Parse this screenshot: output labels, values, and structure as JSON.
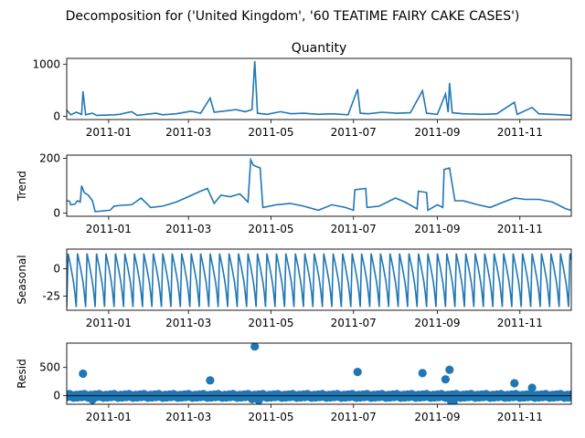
{
  "figure": {
    "title": "Decomposition for ('United Kingdom', '60 TEATIME FAIRY CAKE CASES')"
  },
  "colors": {
    "line": "#1f77b4",
    "axis": "#000000",
    "background": "#ffffff"
  },
  "x_ticks": [
    "2011-01",
    "2011-03",
    "2011-05",
    "2011-07",
    "2011-09",
    "2011-11"
  ],
  "chart_data": [
    {
      "type": "line",
      "panel": "observed",
      "title": "Quantity",
      "ylabel": "",
      "xlim": [
        "2010-12-01",
        "2011-12-09"
      ],
      "ylim": [
        -60,
        1110
      ],
      "yticks": [
        0,
        1000
      ],
      "x_ticks": [
        "2011-01",
        "2011-03",
        "2011-05",
        "2011-07",
        "2011-09",
        "2011-11"
      ],
      "series": [
        {
          "points": [
            [
              "2010-12-01",
              120
            ],
            [
              "2010-12-04",
              30
            ],
            [
              "2010-12-08",
              80
            ],
            [
              "2010-12-12",
              40
            ],
            [
              "2010-12-13",
              480
            ],
            [
              "2010-12-15",
              30
            ],
            [
              "2010-12-20",
              60
            ],
            [
              "2010-12-23",
              20
            ],
            [
              "2011-01-05",
              30
            ],
            [
              "2011-01-09",
              40
            ],
            [
              "2011-01-18",
              90
            ],
            [
              "2011-01-22",
              20
            ],
            [
              "2011-02-05",
              60
            ],
            [
              "2011-02-10",
              30
            ],
            [
              "2011-02-20",
              50
            ],
            [
              "2011-03-03",
              100
            ],
            [
              "2011-03-10",
              60
            ],
            [
              "2011-03-17",
              350
            ],
            [
              "2011-03-20",
              80
            ],
            [
              "2011-03-30",
              110
            ],
            [
              "2011-04-05",
              130
            ],
            [
              "2011-04-12",
              90
            ],
            [
              "2011-04-17",
              130
            ],
            [
              "2011-04-19",
              1060
            ],
            [
              "2011-04-21",
              60
            ],
            [
              "2011-04-28",
              40
            ],
            [
              "2011-05-08",
              90
            ],
            [
              "2011-05-16",
              50
            ],
            [
              "2011-05-25",
              60
            ],
            [
              "2011-06-05",
              40
            ],
            [
              "2011-06-15",
              50
            ],
            [
              "2011-06-27",
              30
            ],
            [
              "2011-07-04",
              520
            ],
            [
              "2011-07-06",
              60
            ],
            [
              "2011-07-12",
              50
            ],
            [
              "2011-07-22",
              80
            ],
            [
              "2011-08-02",
              60
            ],
            [
              "2011-08-12",
              70
            ],
            [
              "2011-08-21",
              490
            ],
            [
              "2011-08-24",
              60
            ],
            [
              "2011-09-01",
              40
            ],
            [
              "2011-09-07",
              430
            ],
            [
              "2011-09-09",
              80
            ],
            [
              "2011-09-10",
              640
            ],
            [
              "2011-09-12",
              70
            ],
            [
              "2011-09-20",
              50
            ],
            [
              "2011-10-05",
              40
            ],
            [
              "2011-10-15",
              50
            ],
            [
              "2011-10-28",
              270
            ],
            [
              "2011-10-30",
              40
            ],
            [
              "2011-11-10",
              170
            ],
            [
              "2011-11-15",
              50
            ],
            [
              "2011-11-25",
              40
            ],
            [
              "2011-12-09",
              20
            ]
          ]
        }
      ]
    },
    {
      "type": "line",
      "panel": "trend",
      "title": "",
      "ylabel": "Trend",
      "xlim": [
        "2010-12-01",
        "2011-12-09"
      ],
      "ylim": [
        -12,
        212
      ],
      "yticks": [
        0,
        200
      ],
      "x_ticks": [
        "2011-01",
        "2011-03",
        "2011-05",
        "2011-07",
        "2011-09",
        "2011-11"
      ],
      "series": [
        {
          "points": [
            [
              "2010-12-01",
              45
            ],
            [
              "2010-12-03",
              43
            ],
            [
              "2010-12-04",
              30
            ],
            [
              "2010-12-07",
              32
            ],
            [
              "2010-12-09",
              45
            ],
            [
              "2010-12-11",
              40
            ],
            [
              "2010-12-12",
              100
            ],
            [
              "2010-12-14",
              75
            ],
            [
              "2010-12-17",
              65
            ],
            [
              "2010-12-20",
              45
            ],
            [
              "2010-12-22",
              5
            ],
            [
              "2011-01-02",
              10
            ],
            [
              "2011-01-05",
              25
            ],
            [
              "2011-01-10",
              28
            ],
            [
              "2011-01-18",
              30
            ],
            [
              "2011-01-25",
              55
            ],
            [
              "2011-02-01",
              20
            ],
            [
              "2011-02-10",
              25
            ],
            [
              "2011-02-20",
              40
            ],
            [
              "2011-03-01",
              60
            ],
            [
              "2011-03-10",
              80
            ],
            [
              "2011-03-15",
              90
            ],
            [
              "2011-03-20",
              35
            ],
            [
              "2011-03-25",
              65
            ],
            [
              "2011-04-01",
              60
            ],
            [
              "2011-04-08",
              70
            ],
            [
              "2011-04-14",
              40
            ],
            [
              "2011-04-16",
              195
            ],
            [
              "2011-04-18",
              175
            ],
            [
              "2011-04-23",
              165
            ],
            [
              "2011-04-25",
              20
            ],
            [
              "2011-05-05",
              30
            ],
            [
              "2011-05-15",
              35
            ],
            [
              "2011-05-25",
              25
            ],
            [
              "2011-06-05",
              10
            ],
            [
              "2011-06-15",
              30
            ],
            [
              "2011-06-25",
              20
            ],
            [
              "2011-07-01",
              10
            ],
            [
              "2011-07-02",
              85
            ],
            [
              "2011-07-10",
              90
            ],
            [
              "2011-07-11",
              20
            ],
            [
              "2011-07-20",
              25
            ],
            [
              "2011-08-01",
              55
            ],
            [
              "2011-08-08",
              40
            ],
            [
              "2011-08-17",
              15
            ],
            [
              "2011-08-18",
              80
            ],
            [
              "2011-08-24",
              75
            ],
            [
              "2011-08-25",
              10
            ],
            [
              "2011-09-01",
              30
            ],
            [
              "2011-09-05",
              20
            ],
            [
              "2011-09-06",
              160
            ],
            [
              "2011-09-10",
              165
            ],
            [
              "2011-09-14",
              45
            ],
            [
              "2011-09-20",
              45
            ],
            [
              "2011-10-01",
              30
            ],
            [
              "2011-10-10",
              20
            ],
            [
              "2011-10-20",
              40
            ],
            [
              "2011-10-28",
              55
            ],
            [
              "2011-11-05",
              50
            ],
            [
              "2011-11-15",
              50
            ],
            [
              "2011-11-25",
              40
            ],
            [
              "2011-12-05",
              15
            ],
            [
              "2011-12-09",
              10
            ]
          ]
        }
      ]
    },
    {
      "type": "line",
      "panel": "seasonal",
      "title": "",
      "ylabel": "Seasonal",
      "xlim": [
        "2010-12-01",
        "2011-12-09"
      ],
      "ylim": [
        -38,
        18
      ],
      "yticks": [
        -25,
        0
      ],
      "x_ticks": [
        "2011-01",
        "2011-03",
        "2011-05",
        "2011-07",
        "2011-09",
        "2011-11"
      ],
      "series": [
        {
          "period_days": 7,
          "weekly_pattern": [
            -35,
            14,
            8,
            2,
            -5,
            -12,
            -22
          ]
        }
      ]
    },
    {
      "type": "scatter",
      "panel": "resid",
      "title": "",
      "ylabel": "Resid",
      "xlim": [
        "2010-12-01",
        "2011-12-09"
      ],
      "ylim": [
        -150,
        930
      ],
      "yticks": [
        0,
        500
      ],
      "baseline": 0,
      "x_ticks": [
        "2011-01",
        "2011-03",
        "2011-05",
        "2011-07",
        "2011-09",
        "2011-11"
      ],
      "series": [
        {
          "points": [
            [
              "2010-12-13",
              390
            ],
            [
              "2011-03-17",
              270
            ],
            [
              "2011-04-19",
              870
            ],
            [
              "2011-07-04",
              420
            ],
            [
              "2011-08-21",
              400
            ],
            [
              "2011-09-07",
              290
            ],
            [
              "2011-09-10",
              460
            ],
            [
              "2011-10-28",
              220
            ],
            [
              "2011-11-10",
              140
            ],
            [
              "2011-04-17",
              -60
            ],
            [
              "2011-04-22",
              -80
            ],
            [
              "2011-09-11",
              -90
            ],
            [
              "2011-09-13",
              -110
            ],
            [
              "2010-12-20",
              -70
            ]
          ],
          "band": [
            -60,
            60
          ]
        }
      ]
    }
  ]
}
